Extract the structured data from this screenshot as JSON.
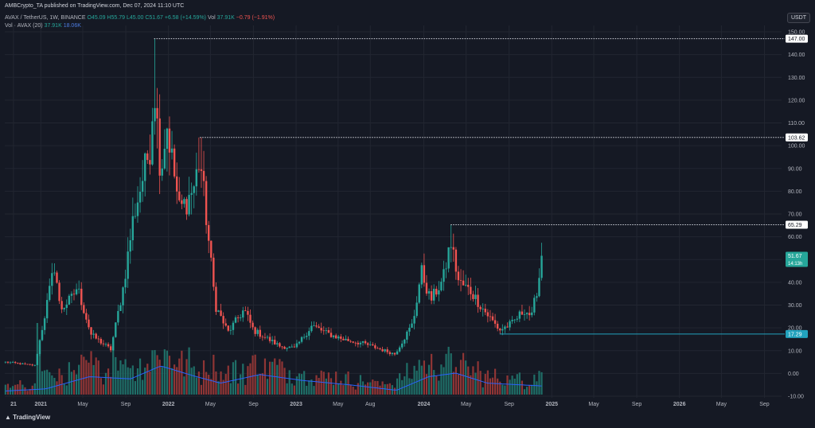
{
  "header": {
    "publisher": "AMBCrypto_TA published on TradingView.com, Dec 07, 2024 11:10 UTC",
    "symbol": "AVAX / TetherUS, 1W, BINANCE",
    "open": "O45.09",
    "high": "H55.79",
    "low": "L45.00",
    "close": "C51.67",
    "change": "+6.58 (+14.59%)",
    "vol_label": "Vol",
    "vol_value": "37.91K",
    "vol_change": "−0.79 (−1.91%)",
    "vol_ma_label": "Vol · AVAX (20)",
    "vol_ma_value1": "37.91K",
    "vol_ma_value2": "18.06K"
  },
  "currency": "USDT",
  "footer": {
    "brand": "TradingView"
  },
  "colors": {
    "background": "#151924",
    "grid": "#222631",
    "up": "#26a69a",
    "down": "#ef5350",
    "ma": "#2962ff",
    "text": "#b2b5be",
    "support": "#22a2bd"
  },
  "chart_data": {
    "type": "candlestick",
    "timeframe": "1W",
    "pair": "AVAX / TetherUS",
    "exchange": "BINANCE",
    "y_scale": {
      "min": -10,
      "max": 150,
      "step": 10
    },
    "y_ticks": [
      "150.00",
      "140.00",
      "130.00",
      "120.00",
      "110.00",
      "100.00",
      "90.00",
      "80.00",
      "70.00",
      "60.00",
      "50.00",
      "40.00",
      "30.00",
      "20.00",
      "10.00",
      "0.00",
      "-10.00"
    ],
    "x_ticks": [
      {
        "label": "21",
        "date": "2020-10-15"
      },
      {
        "label": "2021",
        "date": "2021-01-01"
      },
      {
        "label": "May",
        "date": "2021-05-01"
      },
      {
        "label": "Sep",
        "date": "2021-09-01"
      },
      {
        "label": "2022",
        "date": "2022-01-01"
      },
      {
        "label": "May",
        "date": "2022-05-01"
      },
      {
        "label": "Sep",
        "date": "2022-09-01"
      },
      {
        "label": "2023",
        "date": "2023-01-01"
      },
      {
        "label": "May",
        "date": "2023-05-01"
      },
      {
        "label": "Aug",
        "date": "2023-08-01"
      },
      {
        "label": "2024",
        "date": "2024-01-01"
      },
      {
        "label": "May",
        "date": "2024-05-01"
      },
      {
        "label": "Sep",
        "date": "2024-09-01"
      },
      {
        "label": "2025",
        "date": "2025-01-01"
      },
      {
        "label": "May",
        "date": "2025-05-01"
      },
      {
        "label": "Sep",
        "date": "2025-09-01"
      },
      {
        "label": "2026",
        "date": "2026-01-01"
      },
      {
        "label": "May",
        "date": "2026-05-01"
      },
      {
        "label": "Sep",
        "date": "2026-09-01"
      }
    ],
    "x_range": [
      "2020-09-20",
      "2026-10-20"
    ],
    "price_path": [
      {
        "date": "2020-09-22",
        "price": 5.0
      },
      {
        "date": "2020-12-15",
        "price": 3.5
      },
      {
        "date": "2021-02-10",
        "price": 48.0
      },
      {
        "date": "2021-02-25",
        "price": 28.0
      },
      {
        "date": "2021-03-30",
        "price": 33.0
      },
      {
        "date": "2021-04-15",
        "price": 38.0
      },
      {
        "date": "2021-05-25",
        "price": 17.0
      },
      {
        "date": "2021-07-20",
        "price": 10.5
      },
      {
        "date": "2021-08-25",
        "price": 38.0
      },
      {
        "date": "2021-09-22",
        "price": 68.0
      },
      {
        "date": "2021-11-10",
        "price": 100.0
      },
      {
        "date": "2021-11-21",
        "price": 128.0
      },
      {
        "date": "2021-12-10",
        "price": 88.0
      },
      {
        "date": "2021-12-27",
        "price": 110.0
      },
      {
        "date": "2022-02-01",
        "price": 72.0
      },
      {
        "date": "2022-02-20",
        "price": 75.0
      },
      {
        "date": "2022-03-15",
        "price": 82.0
      },
      {
        "date": "2022-04-01",
        "price": 95.0
      },
      {
        "date": "2022-05-15",
        "price": 30.0
      },
      {
        "date": "2022-06-20",
        "price": 18.0
      },
      {
        "date": "2022-08-05",
        "price": 28.0
      },
      {
        "date": "2022-09-01",
        "price": 19.0
      },
      {
        "date": "2022-11-15",
        "price": 12.0
      },
      {
        "date": "2022-12-28",
        "price": 11.0
      },
      {
        "date": "2023-02-15",
        "price": 21.0
      },
      {
        "date": "2023-04-01",
        "price": 17.5
      },
      {
        "date": "2023-05-15",
        "price": 15.0
      },
      {
        "date": "2023-07-15",
        "price": 13.0
      },
      {
        "date": "2023-10-10",
        "price": 8.5
      },
      {
        "date": "2023-12-01",
        "price": 22.0
      },
      {
        "date": "2023-12-25",
        "price": 45.0
      },
      {
        "date": "2024-01-20",
        "price": 32.0
      },
      {
        "date": "2024-02-25",
        "price": 41.0
      },
      {
        "date": "2024-03-18",
        "price": 58.0
      },
      {
        "date": "2024-04-10",
        "price": 40.0
      },
      {
        "date": "2024-05-15",
        "price": 36.0
      },
      {
        "date": "2024-06-20",
        "price": 28.0
      },
      {
        "date": "2024-08-05",
        "price": 19.0
      },
      {
        "date": "2024-09-10",
        "price": 22.0
      },
      {
        "date": "2024-10-15",
        "price": 28.0
      },
      {
        "date": "2024-11-05",
        "price": 25.0
      },
      {
        "date": "2024-12-07",
        "price": 51.67
      }
    ],
    "volume_ma_path": [
      {
        "date": "2020-09-22",
        "value": 0.05
      },
      {
        "date": "2021-01-15",
        "value": 0.08
      },
      {
        "date": "2021-05-20",
        "value": 0.25
      },
      {
        "date": "2021-09-15",
        "value": 0.22
      },
      {
        "date": "2021-12-10",
        "value": 0.4
      },
      {
        "date": "2022-03-15",
        "value": 0.26
      },
      {
        "date": "2022-05-30",
        "value": 0.16
      },
      {
        "date": "2022-09-20",
        "value": 0.28
      },
      {
        "date": "2023-01-15",
        "value": 0.2
      },
      {
        "date": "2023-06-15",
        "value": 0.13
      },
      {
        "date": "2023-10-15",
        "value": 0.06
      },
      {
        "date": "2024-01-15",
        "value": 0.25
      },
      {
        "date": "2024-04-01",
        "value": 0.3
      },
      {
        "date": "2024-07-01",
        "value": 0.16
      },
      {
        "date": "2024-12-07",
        "value": 0.12
      }
    ],
    "horizontal_levels": [
      {
        "value": 147.0,
        "label": "147.00",
        "start_date": "2021-11-21",
        "style": "dotted"
      },
      {
        "value": 103.62,
        "label": "103.62",
        "start_date": "2022-04-01",
        "style": "dotted"
      },
      {
        "value": 65.29,
        "label": "65.29",
        "start_date": "2024-03-18",
        "style": "dotted"
      },
      {
        "value": 17.29,
        "label": "17.29",
        "start_date": "2024-08-05",
        "style": "solid"
      }
    ],
    "last_price": {
      "value": 51.67,
      "label": "51.67",
      "countdown": "14:13h"
    },
    "grid": true,
    "legend": "top-left"
  }
}
